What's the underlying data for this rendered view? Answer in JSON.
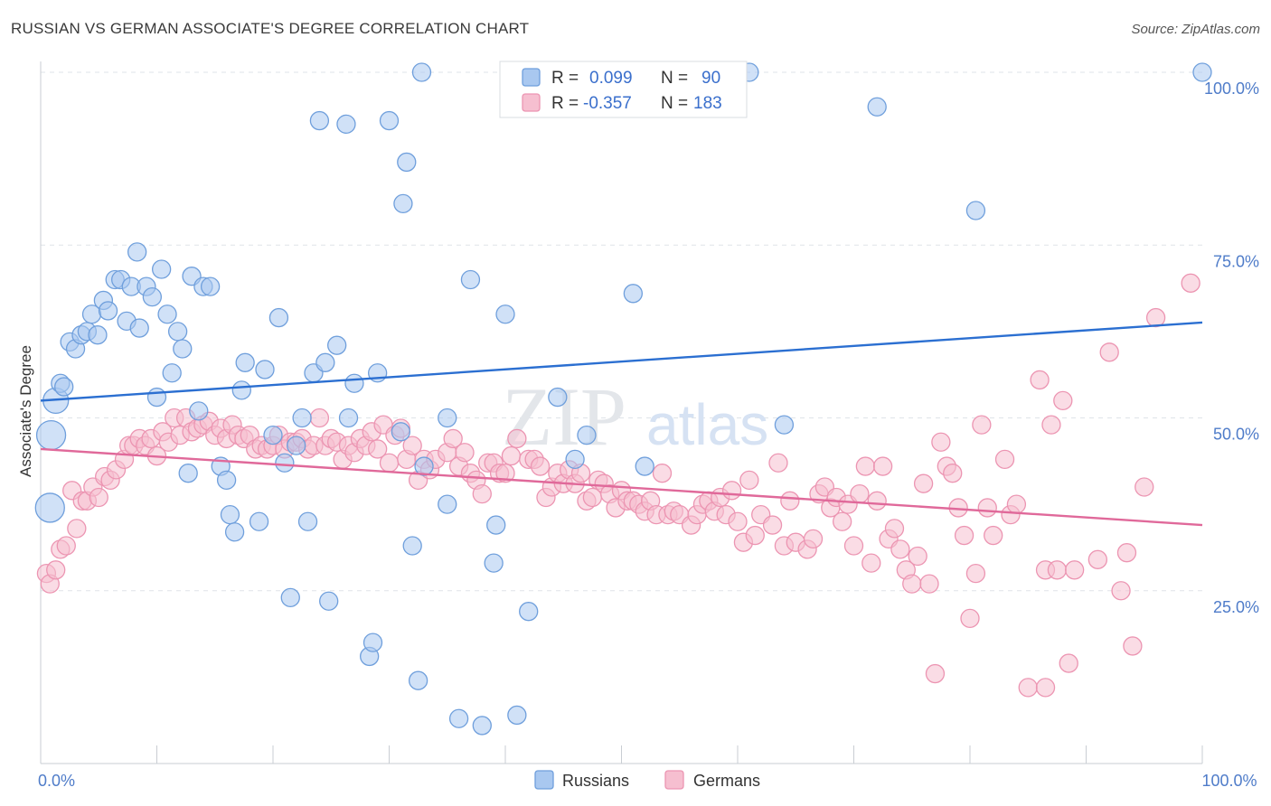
{
  "title": "RUSSIAN VS GERMAN ASSOCIATE'S DEGREE CORRELATION CHART",
  "source": "Source: ZipAtlas.com",
  "watermark": {
    "zip": "ZIP",
    "atlas": "atlas"
  },
  "colors": {
    "russians_fill": "#a9c8f0",
    "russians_stroke": "#6f9fdc",
    "russians_line": "#2b6fd1",
    "germans_fill": "#f6bfd0",
    "germans_stroke": "#ec95b2",
    "germans_line": "#e0699a",
    "grid": "#dfe3e8",
    "tick_text": "#4f7cc9"
  },
  "legend": {
    "r_label": "R =",
    "n_label": "N =",
    "russians": {
      "r": "0.099",
      "n": "90"
    },
    "germans": {
      "r": "-0.357",
      "n": "183"
    }
  },
  "bottom_legend": [
    "Russians",
    "Germans"
  ],
  "chart_data": {
    "type": "scatter",
    "xlabel": "",
    "ylabel": "Associate's Degree",
    "xlim": [
      0,
      100
    ],
    "ylim": [
      0,
      100
    ],
    "x_tick_labels": [
      "0.0%",
      "100.0%"
    ],
    "y_tick_labels": [
      "25.0%",
      "50.0%",
      "75.0%",
      "100.0%"
    ],
    "grid": true,
    "legend_position": "top-center",
    "series": [
      {
        "name": "Russians",
        "trend": {
          "x": [
            0,
            100
          ],
          "y": [
            52.5,
            63.8
          ]
        },
        "points": [
          [
            0.8,
            37
          ],
          [
            0.9,
            47.5
          ],
          [
            1.3,
            52.5
          ],
          [
            1.7,
            55
          ],
          [
            2,
            54.5
          ],
          [
            2.5,
            61
          ],
          [
            3,
            60
          ],
          [
            3.5,
            62
          ],
          [
            4,
            62.5
          ],
          [
            4.4,
            65
          ],
          [
            4.9,
            62
          ],
          [
            5.4,
            67
          ],
          [
            5.8,
            65.5
          ],
          [
            6.4,
            70
          ],
          [
            6.9,
            70
          ],
          [
            7.4,
            64
          ],
          [
            7.8,
            69
          ],
          [
            8.3,
            74
          ],
          [
            8.5,
            63
          ],
          [
            9.1,
            69
          ],
          [
            9.6,
            67.5
          ],
          [
            10,
            53
          ],
          [
            10.4,
            71.5
          ],
          [
            10.9,
            65
          ],
          [
            11.3,
            56.5
          ],
          [
            11.8,
            62.5
          ],
          [
            12.2,
            60
          ],
          [
            12.7,
            42
          ],
          [
            13,
            70.5
          ],
          [
            13.6,
            51
          ],
          [
            14,
            69
          ],
          [
            14.6,
            69
          ],
          [
            15.5,
            43
          ],
          [
            16,
            41
          ],
          [
            16.3,
            36
          ],
          [
            16.7,
            33.5
          ],
          [
            17.3,
            54
          ],
          [
            17.6,
            58
          ],
          [
            18.8,
            35
          ],
          [
            19.3,
            57
          ],
          [
            20,
            47.5
          ],
          [
            20.5,
            64.5
          ],
          [
            21,
            43.5
          ],
          [
            21.5,
            24
          ],
          [
            22,
            46
          ],
          [
            22.5,
            50
          ],
          [
            23,
            35
          ],
          [
            23.5,
            56.5
          ],
          [
            24,
            93
          ],
          [
            24.5,
            58
          ],
          [
            24.8,
            23.5
          ],
          [
            25.5,
            60.5
          ],
          [
            26.3,
            92.5
          ],
          [
            26.5,
            50
          ],
          [
            27,
            55
          ],
          [
            28.3,
            15.5
          ],
          [
            28.6,
            17.5
          ],
          [
            29,
            56.5
          ],
          [
            30,
            93
          ],
          [
            31,
            48
          ],
          [
            31.5,
            87
          ],
          [
            31.2,
            81
          ],
          [
            32,
            31.5
          ],
          [
            32.5,
            12
          ],
          [
            32.8,
            100
          ],
          [
            33,
            43
          ],
          [
            35,
            50
          ],
          [
            35,
            37.5
          ],
          [
            36,
            6.5
          ],
          [
            37,
            70
          ],
          [
            38,
            5.5
          ],
          [
            39,
            29
          ],
          [
            39.2,
            34.5
          ],
          [
            40,
            65
          ],
          [
            41,
            7
          ],
          [
            42,
            22
          ],
          [
            44.5,
            53
          ],
          [
            46,
            44
          ],
          [
            47,
            47.5
          ],
          [
            51,
            68
          ],
          [
            52,
            43
          ],
          [
            57.5,
            100
          ],
          [
            61,
            100
          ],
          [
            64,
            49
          ],
          [
            72,
            95
          ],
          [
            80.5,
            80
          ],
          [
            100,
            100
          ]
        ]
      },
      {
        "name": "Germans",
        "trend": {
          "x": [
            0,
            100
          ],
          "y": [
            45.5,
            34.5
          ]
        },
        "points": [
          [
            0.5,
            27.5
          ],
          [
            0.8,
            26
          ],
          [
            1.3,
            28
          ],
          [
            1.7,
            31
          ],
          [
            2.2,
            31.5
          ],
          [
            2.7,
            39.5
          ],
          [
            3.1,
            34
          ],
          [
            3.6,
            38
          ],
          [
            4,
            38
          ],
          [
            4.5,
            40
          ],
          [
            5,
            38.5
          ],
          [
            5.5,
            41.5
          ],
          [
            6,
            41
          ],
          [
            6.5,
            42.5
          ],
          [
            7.2,
            44
          ],
          [
            7.6,
            46
          ],
          [
            8,
            46
          ],
          [
            8.5,
            47
          ],
          [
            9,
            46
          ],
          [
            9.5,
            47
          ],
          [
            10,
            44.5
          ],
          [
            10.5,
            48
          ],
          [
            11,
            46.5
          ],
          [
            11.5,
            50
          ],
          [
            12,
            47.5
          ],
          [
            12.5,
            50
          ],
          [
            13,
            48
          ],
          [
            13.5,
            48.5
          ],
          [
            14,
            49
          ],
          [
            14.5,
            49.5
          ],
          [
            15,
            47.5
          ],
          [
            15.5,
            48.5
          ],
          [
            16,
            47
          ],
          [
            16.5,
            49
          ],
          [
            17,
            47.5
          ],
          [
            17.5,
            47
          ],
          [
            18,
            47.5
          ],
          [
            18.5,
            45.5
          ],
          [
            19,
            46
          ],
          [
            19.5,
            45.5
          ],
          [
            20,
            46
          ],
          [
            20.5,
            47.5
          ],
          [
            21,
            45.5
          ],
          [
            21.5,
            46.5
          ],
          [
            22,
            46.5
          ],
          [
            22.5,
            47
          ],
          [
            23,
            45.5
          ],
          [
            23.5,
            46
          ],
          [
            24,
            50
          ],
          [
            24.5,
            46
          ],
          [
            25,
            47
          ],
          [
            25.5,
            46.5
          ],
          [
            26,
            44
          ],
          [
            26.5,
            46
          ],
          [
            27,
            45
          ],
          [
            27.5,
            47
          ],
          [
            28,
            46
          ],
          [
            28.5,
            48
          ],
          [
            29,
            45.5
          ],
          [
            29.5,
            49
          ],
          [
            30,
            43.5
          ],
          [
            30.5,
            47.5
          ],
          [
            31,
            48.5
          ],
          [
            31.5,
            44
          ],
          [
            32,
            46
          ],
          [
            32.5,
            41
          ],
          [
            33,
            44
          ],
          [
            33.5,
            42.5
          ],
          [
            34,
            44
          ],
          [
            35,
            45
          ],
          [
            35.5,
            47
          ],
          [
            36,
            43
          ],
          [
            36.5,
            45
          ],
          [
            37,
            42
          ],
          [
            37.5,
            41
          ],
          [
            38,
            39
          ],
          [
            38.5,
            43.5
          ],
          [
            39,
            43.5
          ],
          [
            39.5,
            42
          ],
          [
            40,
            42
          ],
          [
            40.5,
            44.5
          ],
          [
            41,
            47
          ],
          [
            42,
            44
          ],
          [
            42.5,
            44
          ],
          [
            43,
            43
          ],
          [
            43.5,
            38.5
          ],
          [
            44,
            40
          ],
          [
            44.5,
            42
          ],
          [
            45,
            40.5
          ],
          [
            45.5,
            42.5
          ],
          [
            46,
            40.5
          ],
          [
            46.5,
            42
          ],
          [
            47,
            38
          ],
          [
            47.5,
            38.5
          ],
          [
            48,
            41
          ],
          [
            48.5,
            40.5
          ],
          [
            49,
            39
          ],
          [
            49.5,
            37
          ],
          [
            50,
            39.5
          ],
          [
            50.5,
            38
          ],
          [
            51,
            38
          ],
          [
            51.5,
            37.5
          ],
          [
            52,
            36.5
          ],
          [
            52.5,
            38
          ],
          [
            53,
            36
          ],
          [
            53.5,
            42
          ],
          [
            54,
            36
          ],
          [
            54.5,
            36.5
          ],
          [
            55,
            36
          ],
          [
            56,
            34.5
          ],
          [
            56.5,
            36
          ],
          [
            57,
            37.5
          ],
          [
            57.5,
            38
          ],
          [
            58,
            36.5
          ],
          [
            58.5,
            38.5
          ],
          [
            59,
            36
          ],
          [
            59.5,
            39.5
          ],
          [
            60,
            35
          ],
          [
            60.5,
            32
          ],
          [
            61,
            41
          ],
          [
            61.5,
            33
          ],
          [
            62,
            36
          ],
          [
            63,
            34.5
          ],
          [
            63.5,
            43.5
          ],
          [
            64,
            31.5
          ],
          [
            64.5,
            38
          ],
          [
            65,
            32
          ],
          [
            66,
            31
          ],
          [
            66.5,
            32.5
          ],
          [
            67,
            39
          ],
          [
            67.5,
            40
          ],
          [
            68,
            37
          ],
          [
            68.5,
            38.5
          ],
          [
            69,
            35
          ],
          [
            69.5,
            37.5
          ],
          [
            70,
            31.5
          ],
          [
            70.5,
            39
          ],
          [
            71,
            43
          ],
          [
            71.5,
            29
          ],
          [
            72,
            38
          ],
          [
            72.5,
            43
          ],
          [
            73,
            32.5
          ],
          [
            73.5,
            34
          ],
          [
            74,
            31
          ],
          [
            74.5,
            28
          ],
          [
            75,
            26
          ],
          [
            75.5,
            30
          ],
          [
            76,
            40.5
          ],
          [
            76.5,
            26
          ],
          [
            77,
            13
          ],
          [
            77.5,
            46.5
          ],
          [
            78,
            43
          ],
          [
            78.5,
            42
          ],
          [
            79,
            37
          ],
          [
            79.5,
            33
          ],
          [
            80,
            21
          ],
          [
            80.5,
            27.5
          ],
          [
            81,
            49
          ],
          [
            81.5,
            37
          ],
          [
            82,
            33
          ],
          [
            83,
            44
          ],
          [
            83.5,
            36
          ],
          [
            84,
            37.5
          ],
          [
            85,
            11
          ],
          [
            86,
            55.5
          ],
          [
            86.5,
            28
          ],
          [
            87,
            49
          ],
          [
            87.5,
            28
          ],
          [
            88,
            52.5
          ],
          [
            88.5,
            14.5
          ],
          [
            89,
            28
          ],
          [
            91,
            29.5
          ],
          [
            92,
            59.5
          ],
          [
            93,
            25
          ],
          [
            93.5,
            30.5
          ],
          [
            94,
            17
          ],
          [
            95,
            40
          ],
          [
            96,
            64.5
          ],
          [
            99,
            69.5
          ],
          [
            86.5,
            11
          ]
        ]
      }
    ]
  }
}
